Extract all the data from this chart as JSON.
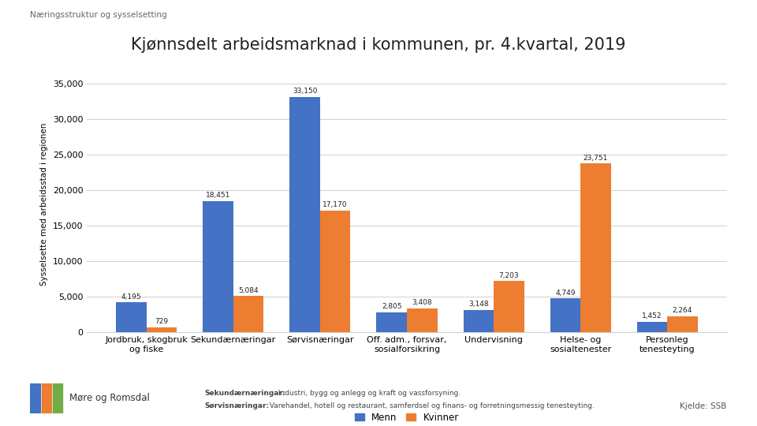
{
  "title": "Kjønnsdelt arbeidsmarknad i kommunen, pr. 4.kvartal, 2019",
  "header": "Næringsstruktur og sysselsetting",
  "ylabel": "Sysselsette med arbeidsstad i regionen",
  "categories": [
    "Jordbruk, skogbruk\nog fiske",
    "Sekundærnæringar",
    "Sørvisnæringar",
    "Off. adm., forsvar,\nsosialforsikring",
    "Undervisning",
    "Helse- og\nsosialtenester",
    "Personleg\ntenesteyting"
  ],
  "men_values": [
    4195,
    18451,
    33150,
    2805,
    3148,
    4749,
    1452
  ],
  "women_values": [
    729,
    5084,
    17170,
    3408,
    7203,
    23751,
    2264
  ],
  "men_labels": [
    "4,195",
    "18,451",
    "33,150",
    "2,805",
    "3,148",
    "4,749",
    "1,452"
  ],
  "women_labels": [
    "729",
    "5,084",
    "17,170",
    "3,408",
    "7,203",
    "23,751",
    "2,264"
  ],
  "men_color": "#4472C4",
  "women_color": "#ED7D31",
  "ylim": [
    0,
    36000
  ],
  "yticks": [
    0,
    5000,
    10000,
    15000,
    20000,
    25000,
    30000,
    35000
  ],
  "legend_labels": [
    "Menn",
    "Kvinner"
  ],
  "source_text": "Kjelde: SSB",
  "footer_bold1": "Sekundærnæringar:",
  "footer_text1": " Industri, bygg og anlegg og kraft og vassforsyning.",
  "footer_bold2": "Sørvisnæringar:",
  "footer_text2": " Varehandel, hotell og restaurant, samferdsel og finans- og forretningsmessig tenesteyting.",
  "logo_text": "Møre og Romsdal",
  "background_color": "#ffffff",
  "grid_color": "#d0d0d0"
}
